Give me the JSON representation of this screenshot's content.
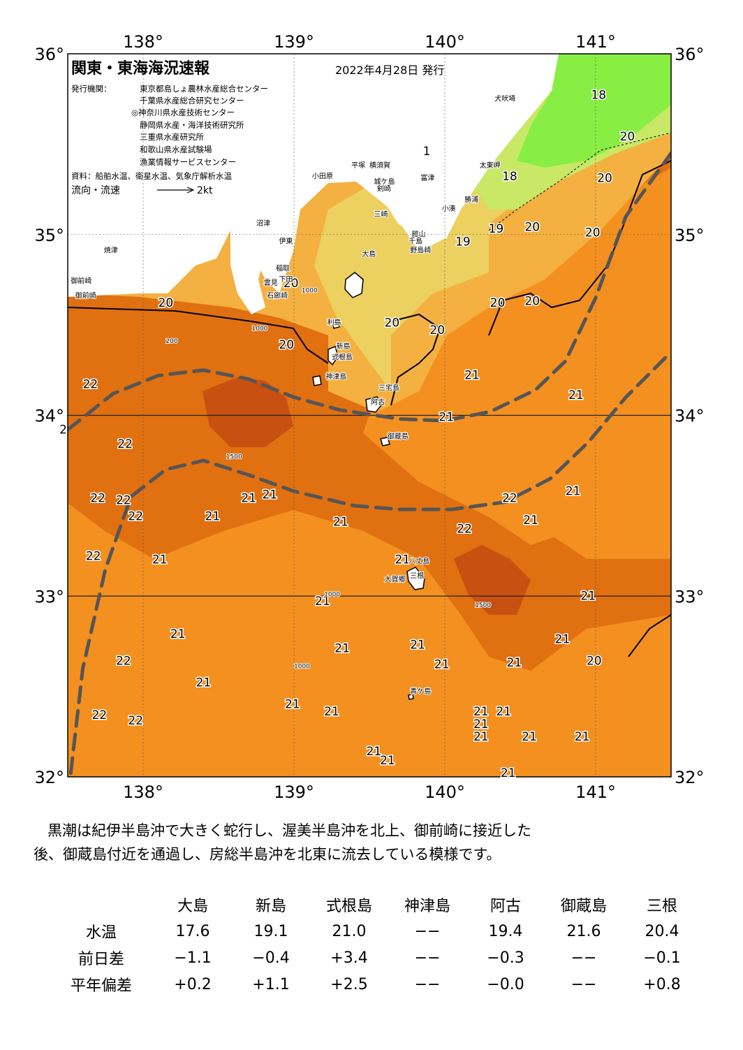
{
  "map": {
    "title": "関東・東海海況速報",
    "date": "2022年4月28日 発行",
    "publisher_label": "発行機関：",
    "publishers": [
      "東京都島しょ農林水産総合センター",
      "千葉県水産総合研究センター",
      "◎神奈川県水産技術センター",
      "静岡県水産・海洋技術研究所",
      "三重県水産研究所",
      "和歌山県水産試験場",
      "漁業情報サービスセンター"
    ],
    "source": "資料：船舶水温、衛星水温、気象庁解析水温",
    "legend_label": "流向・流速",
    "legend_scale": "2kt",
    "lon_ticks": [
      "138°",
      "139°",
      "140°",
      "141°"
    ],
    "lat_ticks": [
      "36°",
      "35°",
      "34°",
      "33°",
      "32°"
    ],
    "lon_range": [
      137.5,
      141.5
    ],
    "lat_range": [
      32,
      36
    ],
    "colors": {
      "land": "#ffffff",
      "cold": "#88ee44",
      "c18": "#c8e866",
      "c19": "#ecd060",
      "c20": "#f4b040",
      "c21": "#f39020",
      "c22": "#e07010",
      "c23": "#c85010",
      "kuroshio_axis": "#555555"
    },
    "temperature_labels": [
      {
        "lon": 137.65,
        "lat": 34.15,
        "value": "22"
      },
      {
        "lon": 137.47,
        "lat": 33.9,
        "value": "2"
      },
      {
        "lon": 137.88,
        "lat": 33.82,
        "value": "22"
      },
      {
        "lon": 137.7,
        "lat": 33.52,
        "value": "22"
      },
      {
        "lon": 137.87,
        "lat": 33.51,
        "value": "22"
      },
      {
        "lon": 137.95,
        "lat": 33.42,
        "value": "22"
      },
      {
        "lon": 137.67,
        "lat": 33.2,
        "value": "22"
      },
      {
        "lon": 138.11,
        "lat": 33.18,
        "value": "21"
      },
      {
        "lon": 138.46,
        "lat": 33.42,
        "value": "21"
      },
      {
        "lon": 138.7,
        "lat": 33.52,
        "value": "21"
      },
      {
        "lon": 138.84,
        "lat": 33.54,
        "value": "21"
      },
      {
        "lon": 139.31,
        "lat": 33.39,
        "value": "21"
      },
      {
        "lon": 139.19,
        "lat": 32.95,
        "value": "21"
      },
      {
        "lon": 138.23,
        "lat": 32.77,
        "value": "21"
      },
      {
        "lon": 137.87,
        "lat": 32.62,
        "value": "22"
      },
      {
        "lon": 138.4,
        "lat": 32.5,
        "value": "21"
      },
      {
        "lon": 139.32,
        "lat": 32.69,
        "value": "21"
      },
      {
        "lon": 138.99,
        "lat": 32.38,
        "value": "21"
      },
      {
        "lon": 139.25,
        "lat": 32.34,
        "value": "21"
      },
      {
        "lon": 137.71,
        "lat": 32.32,
        "value": "22"
      },
      {
        "lon": 137.95,
        "lat": 32.29,
        "value": "22"
      },
      {
        "lon": 139.53,
        "lat": 32.12,
        "value": "21"
      },
      {
        "lon": 139.62,
        "lat": 32.07,
        "value": "21"
      },
      {
        "lon": 139.72,
        "lat": 33.18,
        "value": "21"
      },
      {
        "lon": 139.82,
        "lat": 32.71,
        "value": "21"
      },
      {
        "lon": 139.98,
        "lat": 32.6,
        "value": "21"
      },
      {
        "lon": 140.13,
        "lat": 33.35,
        "value": "22"
      },
      {
        "lon": 140.43,
        "lat": 33.52,
        "value": "22"
      },
      {
        "lon": 140.57,
        "lat": 33.4,
        "value": "21"
      },
      {
        "lon": 140.85,
        "lat": 33.56,
        "value": "21"
      },
      {
        "lon": 140.95,
        "lat": 32.98,
        "value": "21"
      },
      {
        "lon": 140.78,
        "lat": 32.74,
        "value": "21"
      },
      {
        "lon": 140.46,
        "lat": 32.61,
        "value": "21"
      },
      {
        "lon": 140.99,
        "lat": 32.62,
        "value": "20"
      },
      {
        "lon": 140.24,
        "lat": 32.34,
        "value": "21"
      },
      {
        "lon": 140.39,
        "lat": 32.34,
        "value": "21"
      },
      {
        "lon": 140.24,
        "lat": 32.27,
        "value": "21"
      },
      {
        "lon": 140.24,
        "lat": 32.2,
        "value": "21"
      },
      {
        "lon": 140.56,
        "lat": 32.2,
        "value": "21"
      },
      {
        "lon": 140.91,
        "lat": 32.2,
        "value": "21"
      },
      {
        "lon": 140.42,
        "lat": 32.0,
        "value": "21"
      },
      {
        "lon": 140.01,
        "lat": 33.97,
        "value": "21"
      },
      {
        "lon": 140.18,
        "lat": 34.2,
        "value": "21"
      },
      {
        "lon": 140.87,
        "lat": 34.09,
        "value": "21"
      },
      {
        "lon": 139.65,
        "lat": 34.49,
        "value": "20"
      },
      {
        "lon": 139.95,
        "lat": 34.45,
        "value": "20"
      },
      {
        "lon": 138.15,
        "lat": 34.6,
        "value": "20"
      },
      {
        "lon": 138.98,
        "lat": 34.71,
        "value": "20"
      },
      {
        "lon": 138.95,
        "lat": 34.37,
        "value": "20"
      },
      {
        "lon": 140.35,
        "lat": 34.6,
        "value": "20"
      },
      {
        "lon": 140.58,
        "lat": 34.61,
        "value": "20"
      },
      {
        "lon": 140.12,
        "lat": 34.94,
        "value": "19"
      },
      {
        "lon": 140.34,
        "lat": 35.01,
        "value": "19"
      },
      {
        "lon": 140.58,
        "lat": 35.02,
        "value": "20"
      },
      {
        "lon": 140.98,
        "lat": 34.99,
        "value": "20"
      },
      {
        "lon": 141.06,
        "lat": 35.29,
        "value": "20"
      },
      {
        "lon": 141.21,
        "lat": 35.52,
        "value": "20"
      },
      {
        "lon": 140.43,
        "lat": 35.3,
        "value": "18"
      },
      {
        "lon": 141.02,
        "lat": 35.75,
        "value": "18"
      },
      {
        "lon": 139.88,
        "lat": 35.44,
        "value": "1"
      }
    ],
    "place_labels": [
      {
        "lon": 140.33,
        "lat": 35.74,
        "text": "犬吠埼"
      },
      {
        "lon": 140.23,
        "lat": 35.37,
        "text": "太東岬"
      },
      {
        "lon": 140.13,
        "lat": 35.18,
        "text": "勝浦"
      },
      {
        "lon": 139.98,
        "lat": 35.13,
        "text": "小湊"
      },
      {
        "lon": 139.84,
        "lat": 35.3,
        "text": "富津"
      },
      {
        "lon": 139.78,
        "lat": 34.99,
        "text": "館山"
      },
      {
        "lon": 139.76,
        "lat": 34.95,
        "text": "千島"
      },
      {
        "lon": 139.77,
        "lat": 34.9,
        "text": "野島崎"
      },
      {
        "lon": 139.38,
        "lat": 35.37,
        "text": "平塚"
      },
      {
        "lon": 139.5,
        "lat": 35.37,
        "text": "横須賀"
      },
      {
        "lon": 139.12,
        "lat": 35.31,
        "text": "小田原"
      },
      {
        "lon": 139.53,
        "lat": 35.28,
        "text": "城ケ島"
      },
      {
        "lon": 139.55,
        "lat": 35.24,
        "text": "剣崎"
      },
      {
        "lon": 139.53,
        "lat": 35.1,
        "text": "三崎"
      },
      {
        "lon": 139.45,
        "lat": 34.88,
        "text": "大島"
      },
      {
        "lon": 138.75,
        "lat": 35.05,
        "text": "沼津"
      },
      {
        "lon": 138.9,
        "lat": 34.95,
        "text": "伊東"
      },
      {
        "lon": 138.88,
        "lat": 34.8,
        "text": "稲取"
      },
      {
        "lon": 138.9,
        "lat": 34.74,
        "text": "下田"
      },
      {
        "lon": 138.8,
        "lat": 34.72,
        "text": "雲見"
      },
      {
        "lon": 138.82,
        "lat": 34.65,
        "text": "石廊崎"
      },
      {
        "lon": 137.74,
        "lat": 34.9,
        "text": "焼津"
      },
      {
        "lon": 137.52,
        "lat": 34.73,
        "text": "御前崎"
      },
      {
        "lon": 137.55,
        "lat": 34.65,
        "text": "御前崎"
      },
      {
        "lon": 139.22,
        "lat": 34.5,
        "text": "利島"
      },
      {
        "lon": 139.28,
        "lat": 34.37,
        "text": "新島"
      },
      {
        "lon": 139.25,
        "lat": 34.31,
        "text": "式根島"
      },
      {
        "lon": 139.21,
        "lat": 34.2,
        "text": "神津島"
      },
      {
        "lon": 139.56,
        "lat": 34.14,
        "text": "三宅島"
      },
      {
        "lon": 139.51,
        "lat": 34.06,
        "text": "阿古"
      },
      {
        "lon": 139.62,
        "lat": 33.87,
        "text": "御蔵島"
      },
      {
        "lon": 139.76,
        "lat": 33.18,
        "text": "八丈島"
      },
      {
        "lon": 139.77,
        "lat": 33.1,
        "text": "三根"
      },
      {
        "lon": 139.6,
        "lat": 33.08,
        "text": "大賀郷"
      },
      {
        "lon": 139.77,
        "lat": 32.46,
        "text": "青ケ島"
      }
    ],
    "isobath_labels": [
      {
        "lon": 139.05,
        "lat": 34.68,
        "text": "1000"
      },
      {
        "lon": 138.72,
        "lat": 34.47,
        "text": "1000"
      },
      {
        "lon": 138.15,
        "lat": 34.4,
        "text": "200"
      },
      {
        "lon": 138.55,
        "lat": 33.76,
        "text": "1500"
      },
      {
        "lon": 139.2,
        "lat": 33.0,
        "text": "1000"
      },
      {
        "lon": 140.2,
        "lat": 32.94,
        "text": "1500"
      },
      {
        "lon": 139.0,
        "lat": 32.6,
        "text": "1000"
      }
    ],
    "kuroshio_axis": [
      [
        [
          137.5,
          33.92
        ],
        [
          137.8,
          34.12
        ],
        [
          138.1,
          34.22
        ],
        [
          138.4,
          34.25
        ],
        [
          138.7,
          34.2
        ],
        [
          139.0,
          34.1
        ],
        [
          139.3,
          34.03
        ],
        [
          139.7,
          33.98
        ],
        [
          140.0,
          33.97
        ],
        [
          140.3,
          34.02
        ],
        [
          140.6,
          34.14
        ],
        [
          140.8,
          34.3
        ],
        [
          141.0,
          34.65
        ],
        [
          141.2,
          35.1
        ],
        [
          141.5,
          35.45
        ]
      ],
      [
        [
          137.52,
          32.02
        ],
        [
          137.6,
          32.6
        ],
        [
          137.75,
          33.15
        ],
        [
          137.92,
          33.55
        ],
        [
          138.15,
          33.7
        ],
        [
          138.4,
          33.75
        ],
        [
          138.7,
          33.67
        ],
        [
          139.0,
          33.58
        ],
        [
          139.4,
          33.5
        ],
        [
          139.7,
          33.48
        ],
        [
          140.05,
          33.48
        ],
        [
          140.4,
          33.52
        ],
        [
          140.7,
          33.65
        ],
        [
          140.95,
          33.85
        ],
        [
          141.2,
          34.1
        ],
        [
          141.5,
          34.35
        ]
      ]
    ]
  },
  "summary": {
    "line1": "黒潮は紀伊半島沖で大きく蛇行し、渥美半島沖を北上、御前崎に接近した",
    "line2": "後、御蔵島付近を通過し、房総半島沖を北東に流去している模様です。"
  },
  "table": {
    "columns": [
      "大島",
      "新島",
      "式根島",
      "神津島",
      "阿古",
      "御蔵島",
      "三根"
    ],
    "rows": [
      {
        "label": "水温",
        "values": [
          "17.6",
          "19.1",
          "21.0",
          "−−",
          "19.4",
          "21.6",
          "20.4"
        ]
      },
      {
        "label": "前日差",
        "values": [
          "−1.1",
          "−0.4",
          "+3.4",
          "−−",
          "−0.3",
          "−−",
          "−0.1"
        ]
      },
      {
        "label": "平年偏差",
        "values": [
          "+0.2",
          "+1.1",
          "+2.5",
          "−−",
          "−0.0",
          "−−",
          "+0.8"
        ]
      }
    ]
  }
}
